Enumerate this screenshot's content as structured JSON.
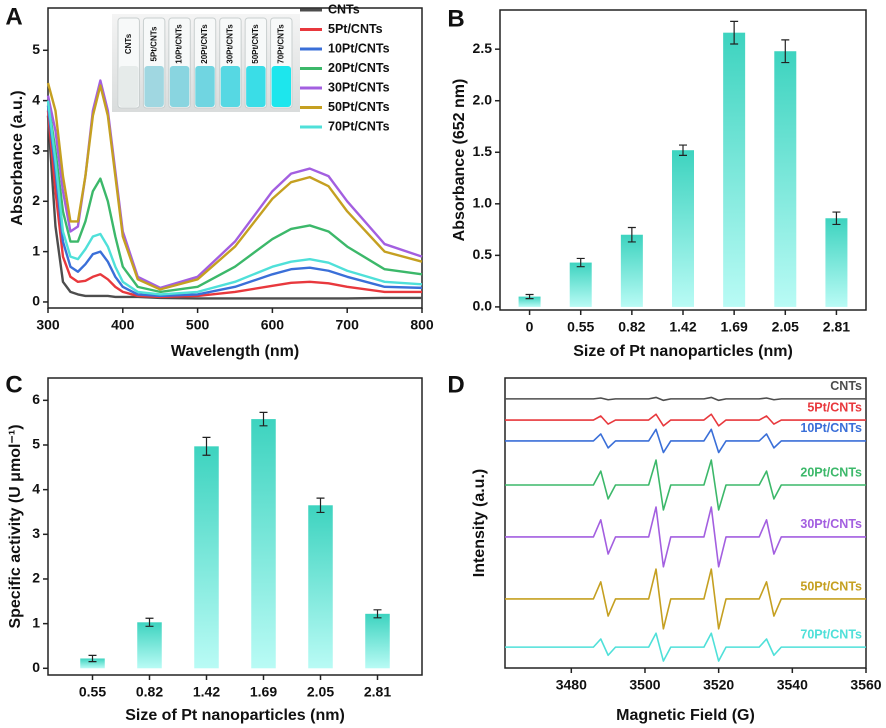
{
  "chart_data": [
    {
      "type": "line",
      "panel_label": "A",
      "x_label": "Wavelength (nm)",
      "y_label": "Absorbance (a.u.)",
      "xlim": [
        300,
        800
      ],
      "ylim": [
        -0.12,
        5.84
      ],
      "xticks": [
        300,
        400,
        500,
        600,
        700,
        800
      ],
      "yticks": [
        0,
        1,
        2,
        3,
        4,
        5
      ],
      "legend": "upper right",
      "inset_labels": [
        "CNTs",
        "5Pt/CNTs",
        "10Pt/CNTs",
        "20Pt/CNTs",
        "30Pt/CNTs",
        "50Pt/CNTs",
        "70Pt/CNTs"
      ],
      "x": [
        300,
        310,
        320,
        330,
        340,
        350,
        360,
        370,
        380,
        390,
        400,
        420,
        450,
        500,
        550,
        600,
        625,
        650,
        675,
        700,
        750,
        800
      ],
      "series": [
        {
          "name": "CNTs",
          "color": "#4d4d4d",
          "values": [
            3.7,
            1.5,
            0.4,
            0.2,
            0.15,
            0.12,
            0.12,
            0.12,
            0.12,
            0.1,
            0.1,
            0.1,
            0.08,
            0.07,
            0.07,
            0.07,
            0.07,
            0.07,
            0.07,
            0.07,
            0.08,
            0.08
          ]
        },
        {
          "name": "5Pt/CNTs",
          "color": "#e8383d",
          "values": [
            3.8,
            2.2,
            0.9,
            0.5,
            0.4,
            0.42,
            0.5,
            0.55,
            0.45,
            0.3,
            0.2,
            0.12,
            0.1,
            0.12,
            0.2,
            0.32,
            0.38,
            0.4,
            0.37,
            0.3,
            0.2,
            0.2
          ]
        },
        {
          "name": "10Pt/CNTs",
          "color": "#3a6fd8",
          "values": [
            3.9,
            2.6,
            1.2,
            0.7,
            0.6,
            0.75,
            0.95,
            1.0,
            0.8,
            0.5,
            0.3,
            0.15,
            0.12,
            0.15,
            0.3,
            0.55,
            0.65,
            0.68,
            0.62,
            0.5,
            0.3,
            0.28
          ]
        },
        {
          "name": "20Pt/CNTs",
          "color": "#3cb86a",
          "values": [
            4.0,
            3.0,
            1.8,
            1.2,
            1.2,
            1.6,
            2.2,
            2.45,
            2.0,
            1.3,
            0.7,
            0.3,
            0.2,
            0.3,
            0.7,
            1.25,
            1.45,
            1.52,
            1.4,
            1.1,
            0.65,
            0.55
          ]
        },
        {
          "name": "30Pt/CNTs",
          "color": "#a35fe0",
          "values": [
            4.1,
            3.4,
            2.2,
            1.4,
            1.5,
            2.5,
            3.8,
            4.4,
            3.8,
            2.6,
            1.4,
            0.5,
            0.28,
            0.5,
            1.2,
            2.2,
            2.55,
            2.65,
            2.5,
            2.0,
            1.15,
            0.9
          ]
        },
        {
          "name": "50Pt/CNTs",
          "color": "#c5a021",
          "values": [
            4.35,
            3.8,
            2.5,
            1.6,
            1.6,
            2.5,
            3.7,
            4.3,
            3.7,
            2.5,
            1.3,
            0.45,
            0.25,
            0.45,
            1.1,
            2.05,
            2.38,
            2.48,
            2.3,
            1.8,
            1.0,
            0.8
          ]
        },
        {
          "name": "70Pt/CNTs",
          "color": "#4fe0d9",
          "values": [
            4.0,
            2.8,
            1.4,
            0.9,
            0.85,
            1.05,
            1.3,
            1.35,
            1.1,
            0.7,
            0.4,
            0.2,
            0.15,
            0.2,
            0.4,
            0.7,
            0.8,
            0.85,
            0.78,
            0.62,
            0.4,
            0.35
          ]
        }
      ]
    },
    {
      "type": "bar",
      "panel_label": "B",
      "x_label": "Size of Pt nanoparticles (nm)",
      "y_label": "Absorbance (652 nm)",
      "ylim": [
        -0.03,
        2.88
      ],
      "yticks": [
        {
          "value": 0,
          "label": "0.0"
        },
        0.5,
        {
          "value": 1,
          "label": "1.0"
        },
        1.5,
        {
          "value": 2,
          "label": "2.0"
        },
        2.5
      ],
      "gradient": [
        "#3dd3bf",
        "#b9fbf5"
      ],
      "categories": [
        "0",
        "0.55",
        "0.82",
        "1.42",
        "1.69",
        "2.05",
        "2.81"
      ],
      "values": [
        0.1,
        0.43,
        0.7,
        1.52,
        2.66,
        2.48,
        0.86
      ],
      "errors": [
        0.02,
        0.04,
        0.07,
        0.05,
        0.11,
        0.11,
        0.06
      ]
    },
    {
      "type": "bar",
      "panel_label": "C",
      "x_label": "Size of Pt nanoparticles (nm)",
      "y_label": "Specific activity (U μmol⁻¹)",
      "ylim": [
        -0.15,
        6.5
      ],
      "yticks": [
        0,
        1,
        2,
        3,
        4,
        5,
        6
      ],
      "gradient": [
        "#3dd3bf",
        "#b9fbf5"
      ],
      "categories": [
        "0.55",
        "0.82",
        "1.42",
        "1.69",
        "2.05",
        "2.81"
      ],
      "values": [
        0.22,
        1.03,
        4.97,
        5.58,
        3.65,
        1.22
      ],
      "errors": [
        0.07,
        0.09,
        0.2,
        0.15,
        0.16,
        0.09
      ]
    },
    {
      "type": "line",
      "panel_label": "D",
      "x_label": "Magnetic Field (G)",
      "y_label": "Intensity (a.u.)",
      "xlim": [
        3462,
        3560
      ],
      "ylim": [
        0,
        100
      ],
      "xticks": [
        3480,
        3500,
        3520,
        3540,
        3560
      ],
      "legend": "inline",
      "x": [
        3462,
        3486,
        3488,
        3490,
        3492,
        3501,
        3503,
        3505,
        3507,
        3516,
        3518,
        3520,
        3522,
        3531,
        3533,
        3535,
        3537,
        3560
      ],
      "series": [
        {
          "name": "CNTs",
          "color": "#4d4d4d",
          "values": [
            92.8,
            92.8,
            93.1,
            92.5,
            92.8,
            92.8,
            93.3,
            92.3,
            92.8,
            92.8,
            93.3,
            92.3,
            92.8,
            92.8,
            93.1,
            92.5,
            92.8,
            92.8
          ]
        },
        {
          "name": "5Pt/CNTs",
          "color": "#e8383d",
          "values": [
            85.5,
            85.5,
            86.9,
            84.1,
            85.5,
            85.5,
            87.5,
            83.5,
            85.5,
            85.5,
            87.5,
            83.5,
            85.5,
            85.5,
            86.9,
            84.1,
            85.5,
            85.5
          ]
        },
        {
          "name": "10Pt/CNTs",
          "color": "#3a6fd8",
          "values": [
            78.3,
            78.3,
            80.7,
            75.9,
            78.3,
            78.3,
            82.3,
            74.3,
            78.3,
            78.3,
            82.3,
            74.3,
            78.3,
            78.3,
            80.7,
            75.9,
            78.3,
            78.3
          ]
        },
        {
          "name": "20Pt/CNTs",
          "color": "#3cb86a",
          "values": [
            63.1,
            63.1,
            67.9,
            58.3,
            63.1,
            63.1,
            71.7,
            54.5,
            63.1,
            63.1,
            71.7,
            54.5,
            63.1,
            63.1,
            67.9,
            58.3,
            63.1,
            63.1
          ]
        },
        {
          "name": "30Pt/CNTs",
          "color": "#a35fe0",
          "values": [
            45.2,
            45.2,
            51.1,
            39.3,
            45.2,
            45.2,
            55.5,
            34.9,
            45.2,
            45.2,
            55.5,
            34.9,
            45.2,
            45.2,
            51.1,
            39.3,
            45.2,
            45.2
          ]
        },
        {
          "name": "50Pt/CNTs",
          "color": "#c5a021",
          "values": [
            23.8,
            23.8,
            29.7,
            17.9,
            23.8,
            23.8,
            34.1,
            13.5,
            23.8,
            23.8,
            34.1,
            13.5,
            23.8,
            23.8,
            29.7,
            17.9,
            23.8,
            23.8
          ]
        },
        {
          "name": "70Pt/CNTs",
          "color": "#4fe0d9",
          "values": [
            7.2,
            7.2,
            10.0,
            4.4,
            7.2,
            7.2,
            12.0,
            2.4,
            7.2,
            7.2,
            12.0,
            2.4,
            7.2,
            7.2,
            10.0,
            4.4,
            7.2,
            7.2
          ]
        }
      ]
    }
  ]
}
